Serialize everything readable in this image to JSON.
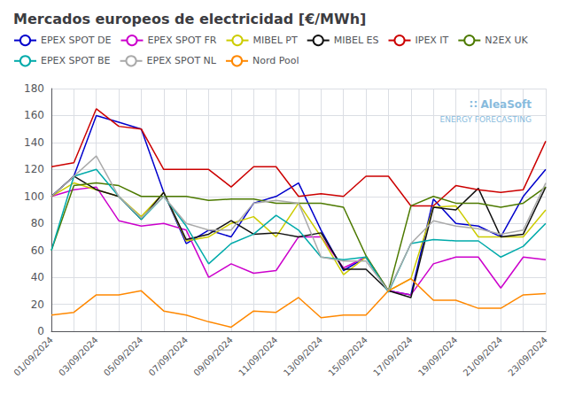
{
  "chart_data": {
    "type": "line",
    "title": "Mercados europeos de electricidad [€/MWh]",
    "categories": [
      "01/09/2024",
      null,
      "03/09/2024",
      null,
      "05/09/2024",
      null,
      "07/09/2024",
      null,
      "09/09/2024",
      null,
      "11/09/2024",
      null,
      "13/09/2024",
      null,
      "15/09/2024",
      null,
      "17/09/2024",
      null,
      "19/09/2024",
      null,
      "21/09/2024",
      null,
      "23/09/2024"
    ],
    "series": [
      {
        "name": "EPEX SPOT DE",
        "color": "#0000cc",
        "values": [
          100,
          115,
          160,
          155,
          150,
          103,
          65,
          75,
          70,
          95,
          100,
          110,
          75,
          45,
          55,
          30,
          27,
          98,
          80,
          78,
          70,
          100,
          120
        ]
      },
      {
        "name": "EPEX SPOT FR",
        "color": "#cc00cc",
        "values": [
          100,
          105,
          107,
          82,
          78,
          80,
          75,
          40,
          50,
          43,
          45,
          70,
          70,
          47,
          55,
          30,
          27,
          50,
          55,
          55,
          32,
          55,
          53
        ]
      },
      {
        "name": "MIBEL PT",
        "color": "#cccc00",
        "values": [
          100,
          110,
          105,
          100,
          85,
          103,
          67,
          70,
          80,
          85,
          70,
          95,
          70,
          42,
          55,
          30,
          39,
          92,
          93,
          70,
          70,
          70,
          90
        ]
      },
      {
        "name": "MIBEL ES",
        "color": "#111111",
        "values": [
          100,
          115,
          105,
          100,
          83,
          103,
          68,
          72,
          82,
          72,
          73,
          70,
          73,
          46,
          46,
          30,
          25,
          92,
          90,
          106,
          70,
          72,
          107
        ]
      },
      {
        "name": "IPEX IT",
        "color": "#cc0000",
        "values": [
          122,
          125,
          165,
          152,
          150,
          120,
          120,
          120,
          107,
          122,
          122,
          100,
          102,
          100,
          115,
          115,
          93,
          93,
          108,
          105,
          103,
          105,
          141
        ]
      },
      {
        "name": "N2EX UK",
        "color": "#4d7a00",
        "values": [
          60,
          108,
          110,
          108,
          100,
          100,
          100,
          97,
          98,
          98,
          95,
          95,
          95,
          92,
          56,
          30,
          93,
          100,
          95,
          95,
          92,
          95,
          107
        ]
      },
      {
        "name": "EPEX SPOT BE",
        "color": "#00aaaa",
        "values": [
          60,
          115,
          120,
          100,
          83,
          100,
          78,
          50,
          65,
          72,
          86,
          75,
          55,
          53,
          55,
          29,
          65,
          68,
          67,
          67,
          55,
          63,
          80
        ]
      },
      {
        "name": "EPEX SPOT NL",
        "color": "#aaaaaa",
        "values": [
          100,
          115,
          130,
          100,
          84,
          100,
          80,
          75,
          75,
          95,
          97,
          95,
          55,
          52,
          52,
          30,
          65,
          82,
          78,
          76,
          72,
          75,
          110
        ]
      },
      {
        "name": "Nord Pool",
        "color": "#ff8800",
        "values": [
          12,
          14,
          27,
          27,
          30,
          15,
          12,
          7,
          3,
          15,
          14,
          25,
          10,
          12,
          12,
          30,
          39,
          23,
          23,
          17,
          17,
          27,
          28
        ]
      }
    ],
    "ylim": [
      0,
      180
    ],
    "yticks": [
      0,
      20,
      40,
      60,
      80,
      100,
      120,
      140,
      160,
      180
    ],
    "grid": true,
    "legend": "upper left",
    "annotations": [
      "∷ AleaSoft",
      "ENERGY FORECASTING"
    ]
  }
}
